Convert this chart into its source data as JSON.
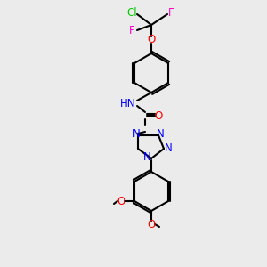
{
  "background_color": "#ebebeb",
  "bond_color": "#000000",
  "bond_width": 1.5,
  "atom_colors": {
    "N": "#0000FF",
    "O": "#FF0000",
    "F": "#FF00CC",
    "Cl": "#00CC00",
    "H": "#666666",
    "C": "#000000"
  },
  "font_size": 8.5,
  "font_size_small": 7.5
}
